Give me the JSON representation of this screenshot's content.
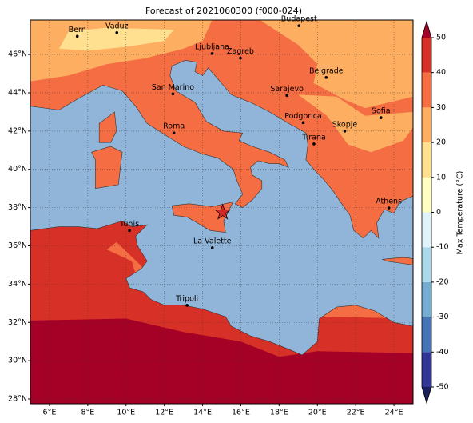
{
  "title": "Forecast of 2021060300 (f000-024)",
  "map": {
    "xlim": [
      5,
      25
    ],
    "ylim": [
      27.75,
      47.8
    ],
    "xticks": [
      {
        "value": 6,
        "label": "6°E"
      },
      {
        "value": 8,
        "label": "8°E"
      },
      {
        "value": 10,
        "label": "10°E"
      },
      {
        "value": 12,
        "label": "12°E"
      },
      {
        "value": 14,
        "label": "14°E"
      },
      {
        "value": 16,
        "label": "16°E"
      },
      {
        "value": 18,
        "label": "18°E"
      },
      {
        "value": 20,
        "label": "20°E"
      },
      {
        "value": 22,
        "label": "22°E"
      },
      {
        "value": 24,
        "label": "24°E"
      }
    ],
    "yticks": [
      {
        "value": 28,
        "label": "28°N"
      },
      {
        "value": 30,
        "label": "30°N"
      },
      {
        "value": 32,
        "label": "32°N"
      },
      {
        "value": 34,
        "label": "34°N"
      },
      {
        "value": 36,
        "label": "36°N"
      },
      {
        "value": 38,
        "label": "38°N"
      },
      {
        "value": 40,
        "label": "40°N"
      },
      {
        "value": 42,
        "label": "42°N"
      },
      {
        "value": 44,
        "label": "44°N"
      },
      {
        "value": 46,
        "label": "46°N"
      }
    ],
    "grid": true
  },
  "cities": [
    {
      "name": "Bern",
      "lon": 7.45,
      "lat": 46.95
    },
    {
      "name": "Vaduz",
      "lon": 9.52,
      "lat": 47.14
    },
    {
      "name": "Budapest",
      "lon": 19.04,
      "lat": 47.5
    },
    {
      "name": "Ljubljana",
      "lon": 14.5,
      "lat": 46.05
    },
    {
      "name": "Zagreb",
      "lon": 15.98,
      "lat": 45.81
    },
    {
      "name": "Belgrade",
      "lon": 20.46,
      "lat": 44.8
    },
    {
      "name": "San Marino",
      "lon": 12.45,
      "lat": 43.94
    },
    {
      "name": "Sarajevo",
      "lon": 18.41,
      "lat": 43.86
    },
    {
      "name": "Sofia",
      "lon": 23.32,
      "lat": 42.7
    },
    {
      "name": "Roma",
      "lon": 12.5,
      "lat": 41.9
    },
    {
      "name": "Podgorica",
      "lon": 19.26,
      "lat": 42.44
    },
    {
      "name": "Skopje",
      "lon": 21.43,
      "lat": 42.0
    },
    {
      "name": "Tirana",
      "lon": 19.82,
      "lat": 41.33
    },
    {
      "name": "Athens",
      "lon": 23.73,
      "lat": 37.98
    },
    {
      "name": "Tunis",
      "lon": 10.18,
      "lat": 36.8
    },
    {
      "name": "La Valette",
      "lon": 14.51,
      "lat": 35.9
    },
    {
      "name": "Tripoli",
      "lon": 13.19,
      "lat": 32.89
    }
  ],
  "marker": {
    "lon": 15.05,
    "lat": 37.75,
    "color": "#d62728"
  },
  "colorbar": {
    "label": "Max Temperature (°C)",
    "ticks": [
      -50,
      -40,
      -30,
      -20,
      -10,
      0,
      10,
      20,
      30,
      40,
      50
    ],
    "colors": [
      "#313695",
      "#4575b4",
      "#74add1",
      "#abd9e9",
      "#e0f3f8",
      "#ffffbf",
      "#fee090",
      "#fdae61",
      "#f46d43",
      "#d73027"
    ],
    "under": "#1b1f5c",
    "over": "#a50026"
  }
}
